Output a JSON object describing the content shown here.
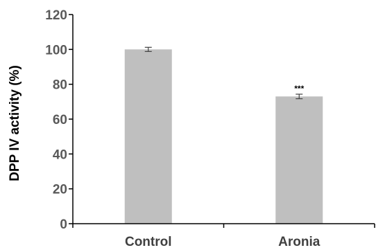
{
  "chart_data": {
    "type": "bar",
    "title": "",
    "xlabel": "",
    "ylabel": "DPP IV activity (%)",
    "ylim": [
      0,
      120
    ],
    "yticks": [
      0,
      20,
      40,
      60,
      80,
      100,
      120
    ],
    "categories": [
      "Control",
      "Aronia"
    ],
    "values": [
      100,
      73
    ],
    "errors": [
      1.2,
      1.3
    ],
    "annotations": [
      "",
      "***"
    ],
    "grid": false,
    "legend": "none",
    "bar_color": "#bfbfbf",
    "error_color": "#404040"
  }
}
